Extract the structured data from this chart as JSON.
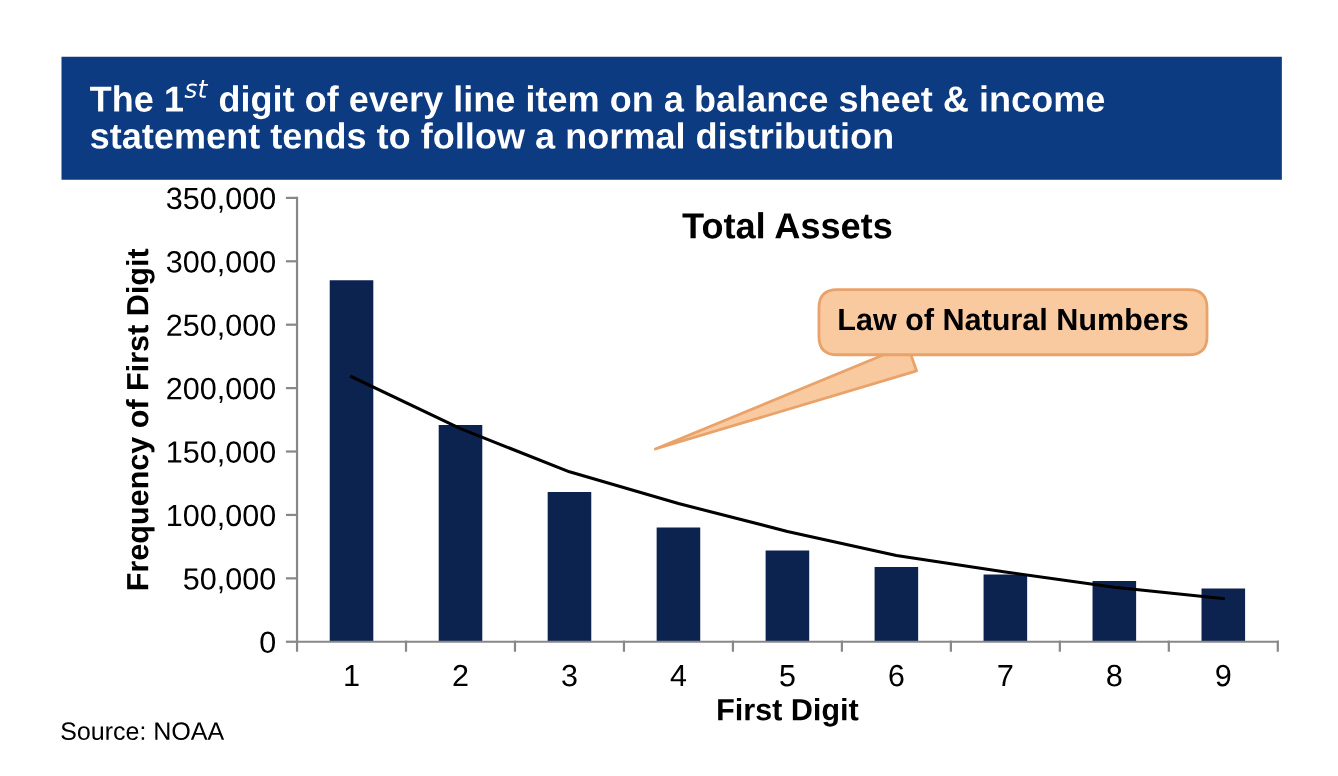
{
  "chart_data": {
    "type": "bar",
    "title": "The 1$^{st}$ digit of every line item on a balance sheet & income statement tends to follow a normal distribution",
    "subtitle": "Total Assets",
    "xlabel": "First Digit",
    "ylabel": "Frequency of First Digit",
    "categories": [
      "1",
      "2",
      "3",
      "4",
      "5",
      "6",
      "7",
      "8",
      "9"
    ],
    "series": [
      {
        "color": "#0c2350",
        "values": [
          285000,
          171000,
          118000,
          90000,
          72000,
          59000,
          53000,
          48000,
          42000
        ]
      },
      {
        "type": "line",
        "color": "#000000",
        "x": [
          "1",
          "2",
          "3",
          "4",
          "5",
          "6",
          "7",
          "8",
          "9"
        ],
        "values": [
          209000,
          168000,
          134000,
          109000,
          87000,
          68000,
          55000,
          43000,
          34000
        ]
      }
    ],
    "ylim": [
      0,
      350000
    ],
    "yticks": [
      0,
      {
        "value": 50000,
        "label": "50,000"
      },
      {
        "value": 100000,
        "label": "100,000"
      },
      {
        "value": 150000,
        "label": "150,000"
      },
      {
        "value": 200000,
        "label": "200,000"
      },
      {
        "value": 250000,
        "label": "250,000"
      },
      {
        "value": 300000,
        "label": "300,000"
      },
      {
        "value": 350000,
        "label": "350,000"
      }
    ],
    "grid": false,
    "annotations": [
      "Law of Natural Numbers",
      "Source: NOAA"
    ]
  }
}
